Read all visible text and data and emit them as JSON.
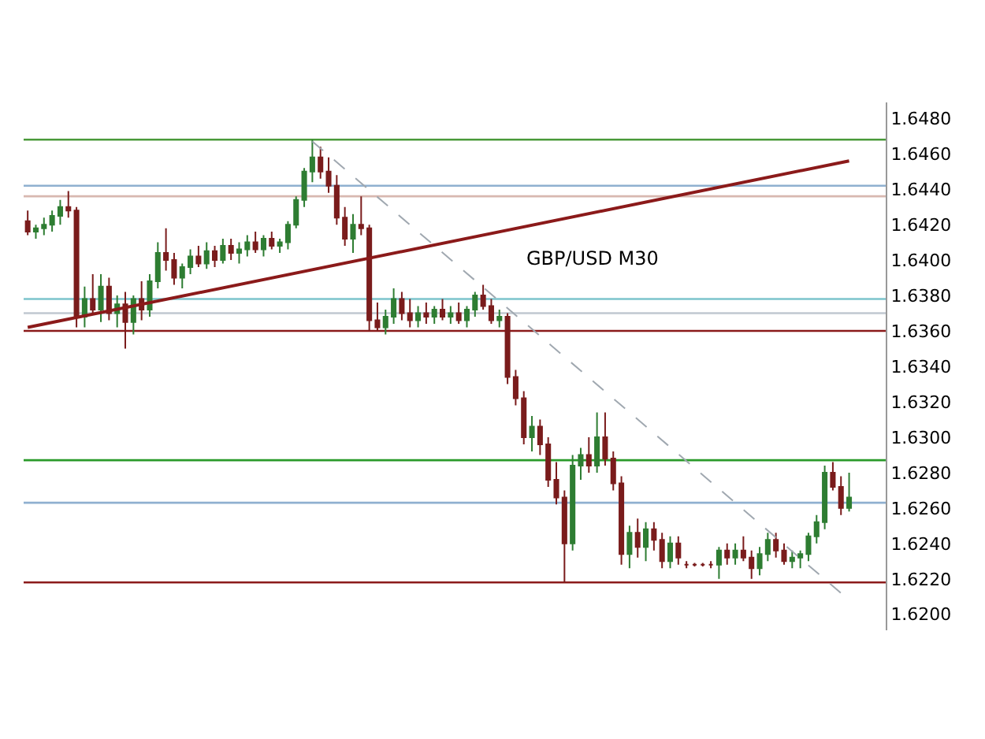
{
  "chart_data": {
    "type": "candlestick",
    "annotations": [
      "GBP/USD M30"
    ],
    "categories": [
      null,
      null,
      null,
      null,
      null,
      null,
      null,
      null,
      null,
      null,
      null,
      null,
      null,
      null,
      null,
      null,
      null,
      null,
      null,
      null,
      null,
      null,
      null,
      null,
      null,
      null,
      null,
      null,
      null,
      null,
      null,
      null,
      null,
      null,
      null,
      null,
      null,
      null,
      null,
      null,
      null,
      null,
      null,
      null,
      null,
      null,
      null,
      null,
      null,
      null,
      null,
      null,
      null,
      null,
      null,
      null,
      null,
      null,
      null,
      null,
      null,
      null,
      null,
      null,
      null,
      null,
      null,
      null,
      null,
      null,
      null,
      null,
      null,
      null,
      null,
      null,
      null,
      null,
      null,
      null,
      null,
      null,
      null,
      null,
      null,
      null,
      null,
      null,
      null,
      null,
      null,
      null,
      null,
      null,
      null,
      null,
      null,
      null,
      null,
      null,
      null,
      null
    ],
    "ohlc": [
      [
        1.6422,
        1.6428,
        1.6414,
        1.6416
      ],
      [
        1.6416,
        1.642,
        1.6412,
        1.6418
      ],
      [
        1.6418,
        1.6424,
        1.6414,
        1.642
      ],
      [
        1.642,
        1.6428,
        1.6416,
        1.6425
      ],
      [
        1.6425,
        1.6434,
        1.642,
        1.643
      ],
      [
        1.643,
        1.6439,
        1.6424,
        1.6428
      ],
      [
        1.6428,
        1.643,
        1.6362,
        1.6368
      ],
      [
        1.6368,
        1.6385,
        1.6362,
        1.6378
      ],
      [
        1.6378,
        1.6392,
        1.637,
        1.6372
      ],
      [
        1.6372,
        1.6392,
        1.6365,
        1.6385
      ],
      [
        1.6385,
        1.639,
        1.6366,
        1.637
      ],
      [
        1.637,
        1.638,
        1.6362,
        1.6375
      ],
      [
        1.6375,
        1.6382,
        1.635,
        1.6365
      ],
      [
        1.6365,
        1.638,
        1.6358,
        1.6378
      ],
      [
        1.6378,
        1.6388,
        1.6366,
        1.6372
      ],
      [
        1.6372,
        1.6392,
        1.6368,
        1.6388
      ],
      [
        1.6388,
        1.641,
        1.6384,
        1.6404
      ],
      [
        1.6404,
        1.6418,
        1.6394,
        1.64
      ],
      [
        1.64,
        1.6404,
        1.6386,
        1.639
      ],
      [
        1.639,
        1.6398,
        1.6384,
        1.6396
      ],
      [
        1.6396,
        1.6406,
        1.6392,
        1.6402
      ],
      [
        1.6402,
        1.6408,
        1.6396,
        1.6398
      ],
      [
        1.6398,
        1.641,
        1.6395,
        1.6405
      ],
      [
        1.6405,
        1.6408,
        1.6396,
        1.64
      ],
      [
        1.64,
        1.6412,
        1.6398,
        1.6408
      ],
      [
        1.6408,
        1.6412,
        1.64,
        1.6404
      ],
      [
        1.6404,
        1.641,
        1.6398,
        1.6406
      ],
      [
        1.6406,
        1.6414,
        1.6402,
        1.641
      ],
      [
        1.641,
        1.6416,
        1.6404,
        1.6406
      ],
      [
        1.6406,
        1.6414,
        1.6402,
        1.6412
      ],
      [
        1.6412,
        1.6416,
        1.6406,
        1.6408
      ],
      [
        1.6408,
        1.6412,
        1.6404,
        1.641
      ],
      [
        1.641,
        1.6422,
        1.6406,
        1.642
      ],
      [
        1.642,
        1.6436,
        1.6418,
        1.6434
      ],
      [
        1.6434,
        1.6452,
        1.643,
        1.645
      ],
      [
        1.645,
        1.6468,
        1.6444,
        1.6458
      ],
      [
        1.6458,
        1.6464,
        1.6446,
        1.645
      ],
      [
        1.645,
        1.6458,
        1.6438,
        1.6442
      ],
      [
        1.6442,
        1.6448,
        1.642,
        1.6424
      ],
      [
        1.6424,
        1.643,
        1.6408,
        1.6412
      ],
      [
        1.6412,
        1.6426,
        1.6404,
        1.642
      ],
      [
        1.642,
        1.6436,
        1.6414,
        1.6418
      ],
      [
        1.6418,
        1.642,
        1.636,
        1.6366
      ],
      [
        1.6366,
        1.6376,
        1.636,
        1.6362
      ],
      [
        1.6362,
        1.6372,
        1.6358,
        1.6368
      ],
      [
        1.6368,
        1.6384,
        1.6364,
        1.6378
      ],
      [
        1.6378,
        1.6382,
        1.6366,
        1.637
      ],
      [
        1.637,
        1.6378,
        1.6362,
        1.6366
      ],
      [
        1.6366,
        1.6374,
        1.6362,
        1.637
      ],
      [
        1.637,
        1.6376,
        1.6364,
        1.6368
      ],
      [
        1.6368,
        1.6374,
        1.6364,
        1.6372
      ],
      [
        1.6372,
        1.6378,
        1.6366,
        1.6368
      ],
      [
        1.6368,
        1.6374,
        1.6364,
        1.637
      ],
      [
        1.637,
        1.6376,
        1.6364,
        1.6366
      ],
      [
        1.6366,
        1.6374,
        1.6362,
        1.6372
      ],
      [
        1.6372,
        1.6382,
        1.6368,
        1.638
      ],
      [
        1.638,
        1.6386,
        1.6372,
        1.6374
      ],
      [
        1.6374,
        1.6378,
        1.6364,
        1.6366
      ],
      [
        1.6366,
        1.6372,
        1.6362,
        1.6368
      ],
      [
        1.6368,
        1.637,
        1.633,
        1.6334
      ],
      [
        1.6334,
        1.6338,
        1.6318,
        1.6322
      ],
      [
        1.6322,
        1.6326,
        1.6296,
        1.63
      ],
      [
        1.63,
        1.6312,
        1.6292,
        1.6306
      ],
      [
        1.6306,
        1.631,
        1.629,
        1.6296
      ],
      [
        1.6296,
        1.63,
        1.6272,
        1.6276
      ],
      [
        1.6276,
        1.6286,
        1.6262,
        1.6266
      ],
      [
        1.6266,
        1.627,
        1.6218,
        1.624
      ],
      [
        1.624,
        1.629,
        1.6236,
        1.6284
      ],
      [
        1.6284,
        1.6294,
        1.6276,
        1.629
      ],
      [
        1.629,
        1.63,
        1.628,
        1.6284
      ],
      [
        1.6284,
        1.6314,
        1.628,
        1.63
      ],
      [
        1.63,
        1.6314,
        1.6284,
        1.6288
      ],
      [
        1.6288,
        1.6292,
        1.627,
        1.6274
      ],
      [
        1.6274,
        1.6278,
        1.6228,
        1.6234
      ],
      [
        1.6234,
        1.625,
        1.6226,
        1.6246
      ],
      [
        1.6246,
        1.6254,
        1.6232,
        1.6238
      ],
      [
        1.6238,
        1.6252,
        1.623,
        1.6248
      ],
      [
        1.6248,
        1.6252,
        1.6236,
        1.6242
      ],
      [
        1.6242,
        1.6246,
        1.6226,
        1.623
      ],
      [
        1.623,
        1.6244,
        1.6226,
        1.624
      ],
      [
        1.624,
        1.6244,
        1.6228,
        1.6232
      ],
      [
        1.6228,
        1.623,
        1.6226,
        1.6228
      ],
      [
        1.6228,
        1.6229,
        1.6227,
        1.6228
      ],
      [
        1.6228,
        1.6229,
        1.6227,
        1.6228
      ],
      [
        1.6228,
        1.623,
        1.6226,
        1.6228
      ],
      [
        1.6228,
        1.6238,
        1.622,
        1.6236
      ],
      [
        1.6236,
        1.624,
        1.6228,
        1.6232
      ],
      [
        1.6232,
        1.624,
        1.6228,
        1.6236
      ],
      [
        1.6236,
        1.6244,
        1.623,
        1.6232
      ],
      [
        1.6232,
        1.6236,
        1.622,
        1.6226
      ],
      [
        1.6226,
        1.6238,
        1.6222,
        1.6234
      ],
      [
        1.6234,
        1.6246,
        1.623,
        1.6242
      ],
      [
        1.6242,
        1.6246,
        1.6232,
        1.6236
      ],
      [
        1.6236,
        1.624,
        1.6228,
        1.623
      ],
      [
        1.623,
        1.6236,
        1.6226,
        1.6232
      ],
      [
        1.6232,
        1.6236,
        1.6226,
        1.6234
      ],
      [
        1.6234,
        1.6246,
        1.623,
        1.6244
      ],
      [
        1.6244,
        1.6256,
        1.624,
        1.6252
      ],
      [
        1.6252,
        1.6284,
        1.6248,
        1.628
      ],
      [
        1.628,
        1.6286,
        1.627,
        1.6272
      ],
      [
        1.6272,
        1.6278,
        1.6256,
        1.626
      ],
      [
        1.626,
        1.628,
        1.6258,
        1.6266
      ]
    ],
    "series": [
      {
        "type": "line",
        "color": "#8b1a1a",
        "line_style": "solid",
        "values": [
          1.6362,
          null,
          null,
          null,
          null,
          null,
          null,
          null,
          null,
          null,
          null,
          null,
          null,
          null,
          null,
          null,
          null,
          null,
          null,
          null,
          null,
          null,
          null,
          null,
          null,
          null,
          null,
          null,
          null,
          null,
          null,
          null,
          null,
          null,
          null,
          null,
          null,
          null,
          null,
          null,
          null,
          null,
          null,
          null,
          null,
          null,
          null,
          null,
          null,
          null,
          null,
          null,
          null,
          null,
          null,
          null,
          null,
          null,
          null,
          null,
          null,
          null,
          null,
          null,
          null,
          null,
          null,
          null,
          null,
          null,
          null,
          null,
          null,
          null,
          null,
          null,
          null,
          null,
          null,
          null,
          null,
          null,
          null,
          null,
          null,
          null,
          null,
          null,
          null,
          null,
          null,
          null,
          null,
          null,
          null,
          null,
          null,
          null,
          null,
          null,
          null,
          1.6456
        ]
      },
      {
        "type": "line",
        "color": "#a0a8b0",
        "line_style": "dashed",
        "values": [
          null,
          null,
          null,
          null,
          null,
          null,
          null,
          null,
          null,
          null,
          null,
          null,
          null,
          null,
          null,
          null,
          null,
          null,
          null,
          null,
          null,
          null,
          null,
          null,
          null,
          null,
          null,
          null,
          null,
          null,
          null,
          null,
          null,
          null,
          null,
          1.6467,
          null,
          null,
          null,
          null,
          null,
          null,
          null,
          null,
          null,
          null,
          null,
          null,
          null,
          null,
          null,
          null,
          null,
          null,
          null,
          null,
          null,
          null,
          null,
          null,
          null,
          null,
          null,
          null,
          null,
          null,
          null,
          null,
          null,
          null,
          null,
          null,
          null,
          null,
          null,
          null,
          null,
          null,
          null,
          null,
          null,
          null,
          null,
          null,
          null,
          null,
          null,
          null,
          null,
          null,
          null,
          null,
          null,
          null,
          null,
          null,
          null,
          null,
          null,
          null,
          1.6212,
          null
        ]
      }
    ],
    "ref_lines": [
      {
        "axis": "y",
        "value": 1.6468,
        "color": "#4a9a3a"
      },
      {
        "axis": "y",
        "value": 1.6442,
        "color": "#8fb0d0"
      },
      {
        "axis": "y",
        "value": 1.6436,
        "color": "#d8b8b0"
      },
      {
        "axis": "y",
        "value": 1.6378,
        "color": "#7cc4cc"
      },
      {
        "axis": "y",
        "value": 1.637,
        "color": "#c0c8d0"
      },
      {
        "axis": "y",
        "value": 1.636,
        "color": "#8b1a1a"
      },
      {
        "axis": "y",
        "value": 1.6287,
        "color": "#2a9a2a"
      },
      {
        "axis": "y",
        "value": 1.6263,
        "color": "#8fb0d0"
      },
      {
        "axis": "y",
        "value": 1.6218,
        "color": "#8b1a1a"
      }
    ],
    "ylim": [
      1.6191,
      1.6489
    ],
    "yticks": [
      {
        "value": 1.62,
        "label": "1.6200"
      },
      {
        "value": 1.622,
        "label": "1.6220"
      },
      {
        "value": 1.624,
        "label": "1.6240"
      },
      {
        "value": 1.626,
        "label": "1.6260"
      },
      {
        "value": 1.628,
        "label": "1.6280"
      },
      {
        "value": 1.63,
        "label": "1.6300"
      },
      {
        "value": 1.632,
        "label": "1.6320"
      },
      {
        "value": 1.634,
        "label": "1.6340"
      },
      {
        "value": 1.636,
        "label": "1.6360"
      },
      {
        "value": 1.638,
        "label": "1.6380"
      },
      {
        "value": 1.64,
        "label": "1.6400"
      },
      {
        "value": 1.642,
        "label": "1.6420"
      },
      {
        "value": 1.644,
        "label": "1.6440"
      },
      {
        "value": 1.646,
        "label": "1.6460"
      },
      {
        "value": 1.648,
        "label": "1.6480"
      }
    ],
    "tick_labels": "y",
    "grid": false
  }
}
